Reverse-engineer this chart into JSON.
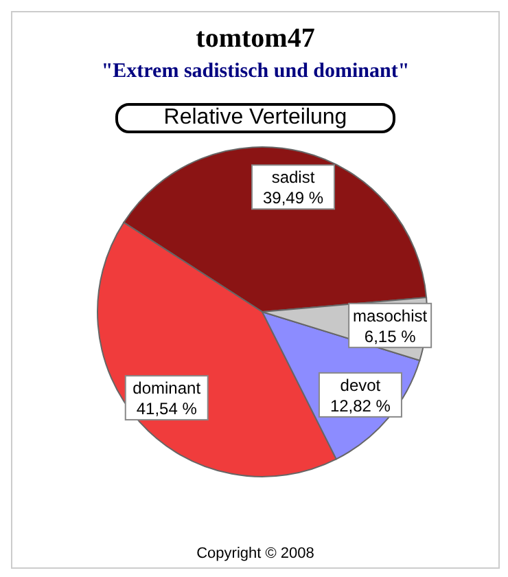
{
  "chart_data": {
    "type": "pie",
    "title": "tomtom47",
    "subtitle": "\"Extrem sadistisch und dominant\"",
    "annotations": [
      "Relative Verteilung",
      "Copyright © 2008"
    ],
    "categories": [
      "sadist",
      "dominant",
      "devot",
      "masochist"
    ],
    "values": [
      39.49,
      41.54,
      12.82,
      6.15
    ],
    "value_labels": [
      "39,49 %",
      "41,54 %",
      "12,82 %",
      "6,15 %"
    ],
    "colors": [
      "#8b1414",
      "#f03c3c",
      "#8c8cff",
      "#c8c8c8"
    ]
  }
}
